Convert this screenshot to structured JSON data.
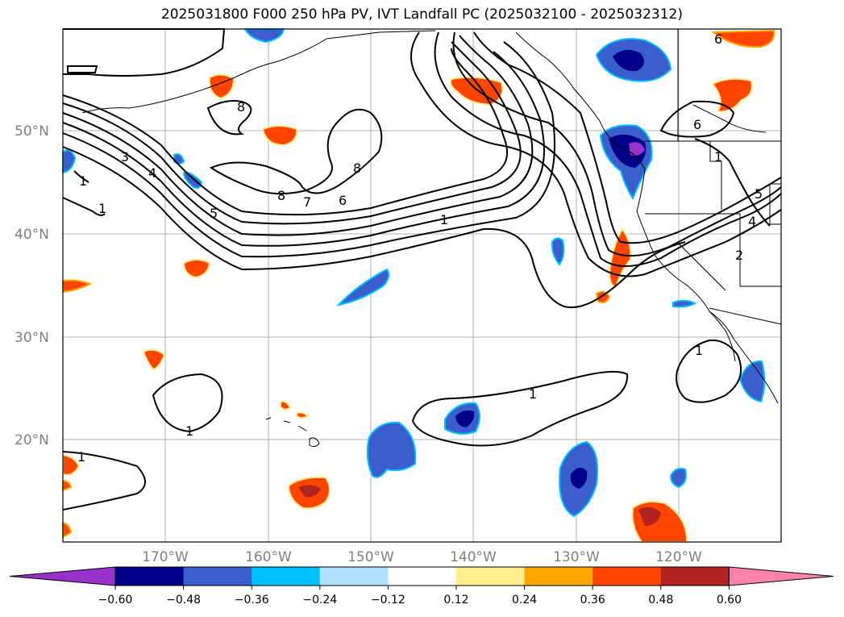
{
  "title": "2025031800 F000 250 hPa PV, IVT Landfall PC (2025032100 - 2025032312)",
  "map": {
    "lat_labels": [
      "50°N",
      "40°N",
      "30°N",
      "20°N"
    ],
    "lon_labels": [
      "170°W",
      "160°W",
      "150°W",
      "140°W",
      "130°W",
      "120°W"
    ],
    "contour_labels": [
      "8",
      "8",
      "8",
      "7",
      "6",
      "5",
      "4",
      "3",
      "1",
      "1",
      "1",
      "1",
      "1",
      "1",
      "6",
      "6",
      "5",
      "4",
      "2",
      "1",
      "1"
    ]
  },
  "colorbar": {
    "tick_labels": [
      "−0.60",
      "−0.48",
      "−0.36",
      "−0.24",
      "−0.12",
      "0.12",
      "0.24",
      "0.36",
      "0.48",
      "0.60"
    ],
    "colors": [
      "#9932cc",
      "#00008b",
      "#3a5fcd",
      "#00bfff",
      "#b0e2ff",
      "#ffffff",
      "#ffec8b",
      "#ffa500",
      "#ff4500",
      "#b22222",
      "#ff82ab"
    ]
  }
}
